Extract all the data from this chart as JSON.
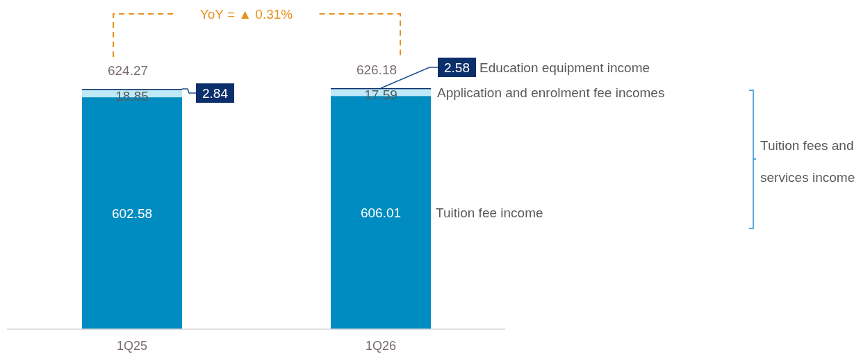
{
  "chart_data": {
    "type": "bar",
    "stacked": true,
    "categories": [
      "1Q25",
      "1Q26"
    ],
    "series": [
      {
        "name": "Tuition fee income",
        "color": "#008cc0",
        "values": [
          602.58,
          606.01
        ]
      },
      {
        "name": "Application and enrolment fee incomes",
        "color": "#bde9f8",
        "values": [
          18.85,
          17.59
        ]
      },
      {
        "name": "Education equipment income",
        "color": "#0a2f6b",
        "values": [
          2.84,
          2.58
        ]
      }
    ],
    "data_labels": true,
    "totals": [
      "624.27",
      "626.18"
    ],
    "tick_labels": "x",
    "annotations": [
      "YoY = ▲ 0.31%",
      "Tuition fees and services income"
    ]
  }
}
